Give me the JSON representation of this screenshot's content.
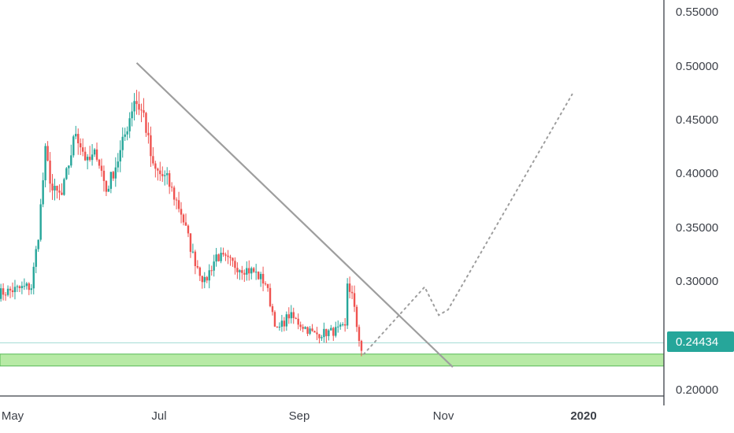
{
  "chart_data": {
    "type": "candlestick",
    "x_tick_labels": [
      "May",
      "Jul",
      "Sep",
      "Nov",
      "2020"
    ],
    "y_tick_labels": [
      "0.55000",
      "0.50000",
      "0.45000",
      "0.40000",
      "0.35000",
      "0.30000",
      "0.20000"
    ],
    "y_range": [
      0.185,
      0.56
    ],
    "current_price": "0.24434",
    "current_price_value": 0.24434,
    "colors": {
      "up": "#26a69a",
      "down": "#ef5350",
      "trendline": "#9e9e9e",
      "projection": "#9e9e9e",
      "support_fill": "#b7eaa5",
      "support_border": "#55b855",
      "price_tag": "#26a69a",
      "price_line": "#a5dcd6",
      "axis": "#3c4048"
    },
    "support_zone": [
      0.223,
      0.234
    ],
    "trendline": {
      "from": [
        "2019-06-23",
        0.503
      ],
      "to": [
        "2019-11-05",
        0.222
      ]
    },
    "projection_path": [
      [
        "2019-09-28",
        0.234
      ],
      [
        "2019-10-24",
        0.296
      ],
      [
        "2019-10-30",
        0.27
      ],
      [
        "2019-11-03",
        0.275
      ],
      [
        "2019-12-26",
        0.474
      ]
    ],
    "ohlc_keypoints": [
      [
        "2019-04-25",
        0.29
      ],
      [
        "2019-05-07",
        0.296
      ],
      [
        "2019-05-09",
        0.296
      ],
      [
        "2019-05-12",
        0.345
      ],
      [
        "2019-05-15",
        0.42
      ],
      [
        "2019-05-18",
        0.385
      ],
      [
        "2019-05-22",
        0.38
      ],
      [
        "2019-05-28",
        0.44
      ],
      [
        "2019-06-02",
        0.41
      ],
      [
        "2019-06-06",
        0.42
      ],
      [
        "2019-06-10",
        0.385
      ],
      [
        "2019-06-16",
        0.42
      ],
      [
        "2019-06-22",
        0.47
      ],
      [
        "2019-06-26",
        0.455
      ],
      [
        "2019-06-30",
        0.405
      ],
      [
        "2019-07-06",
        0.395
      ],
      [
        "2019-07-12",
        0.365
      ],
      [
        "2019-07-17",
        0.325
      ],
      [
        "2019-07-22",
        0.3
      ],
      [
        "2019-07-27",
        0.325
      ],
      [
        "2019-08-05",
        0.315
      ],
      [
        "2019-08-12",
        0.31
      ],
      [
        "2019-08-17",
        0.3
      ],
      [
        "2019-08-22",
        0.255
      ],
      [
        "2019-08-27",
        0.27
      ],
      [
        "2019-09-02",
        0.26
      ],
      [
        "2019-09-07",
        0.252
      ],
      [
        "2019-09-15",
        0.255
      ],
      [
        "2019-09-20",
        0.258
      ],
      [
        "2019-09-21",
        0.3
      ],
      [
        "2019-09-23",
        0.288
      ],
      [
        "2019-09-25",
        0.26
      ],
      [
        "2019-09-27",
        0.237
      ]
    ]
  }
}
